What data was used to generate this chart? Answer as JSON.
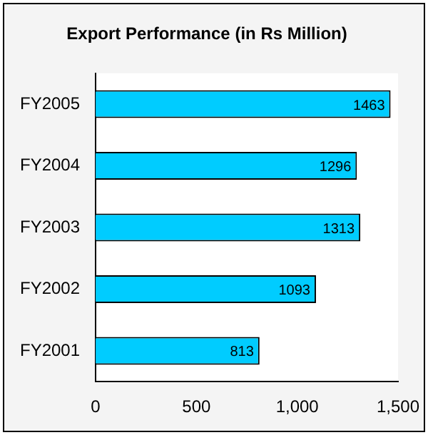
{
  "chart_data": {
    "type": "bar",
    "orientation": "horizontal",
    "title": "Export Performance (in Rs Million)",
    "categories": [
      "FY2005",
      "FY2004",
      "FY2003",
      "FY2002",
      "FY2001"
    ],
    "values": [
      1463,
      1296,
      1313,
      1093,
      813
    ],
    "color": "#00ccff",
    "xlim": [
      0,
      1500
    ],
    "xticks": [
      0,
      500,
      {
        "value": 1000,
        "label": "1,000"
      },
      {
        "value": 1500,
        "label": "1,500"
      }
    ],
    "data_labels": true,
    "grid": false,
    "legend": false
  }
}
